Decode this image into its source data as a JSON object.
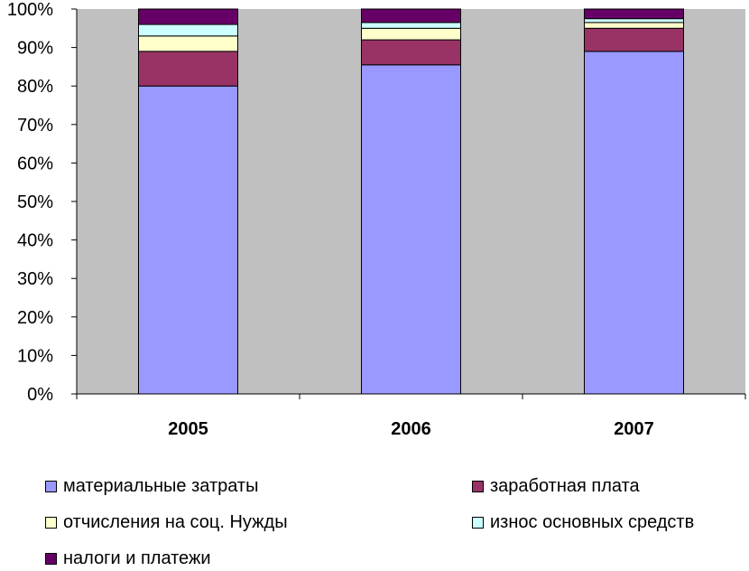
{
  "chart_data": {
    "type": "bar",
    "stacked": true,
    "percent": true,
    "categories": [
      "2005",
      "2006",
      "2007"
    ],
    "series": [
      {
        "name": "материальные затраты",
        "color": "#9999ff",
        "values": [
          80.0,
          85.5,
          89.0
        ]
      },
      {
        "name": "заработная плата",
        "color": "#993366",
        "values": [
          9.0,
          6.5,
          6.0
        ]
      },
      {
        "name": "отчисления на соц. Нужды",
        "color": "#ffffcc",
        "values": [
          4.0,
          3.0,
          1.5
        ]
      },
      {
        "name": "износ основных средств",
        "color": "#ccffff",
        "values": [
          3.0,
          1.5,
          1.0
        ]
      },
      {
        "name": "налоги и платежи",
        "color": "#660066",
        "values": [
          4.0,
          3.5,
          2.5
        ]
      }
    ],
    "ylim": [
      0,
      100
    ],
    "yticks": [
      "0%",
      "10%",
      "20%",
      "30%",
      "40%",
      "50%",
      "60%",
      "70%",
      "80%",
      "90%",
      "100%"
    ],
    "plot_background": "#c0c0c0",
    "grid": false,
    "legend_position": "bottom"
  }
}
